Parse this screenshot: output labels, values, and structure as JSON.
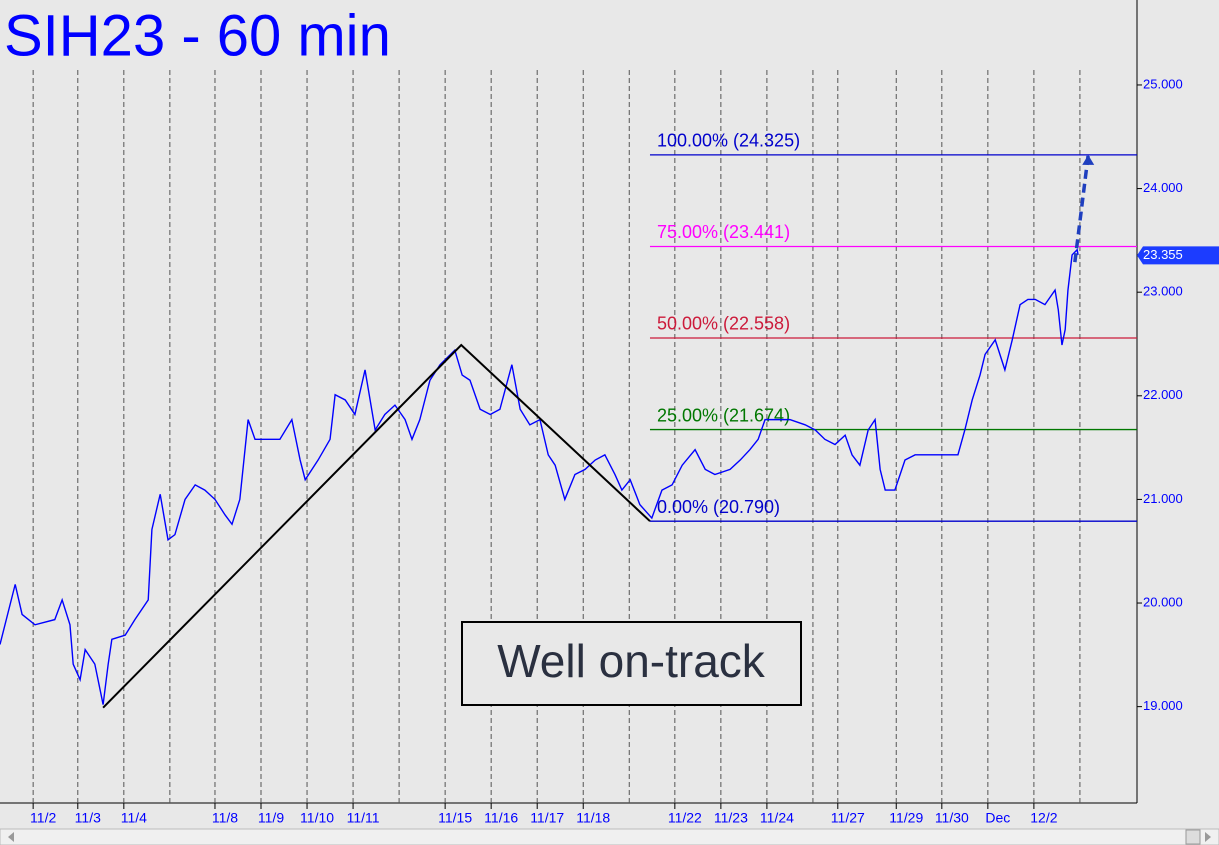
{
  "chart_data": {
    "type": "line",
    "title": "SIH23 - 60 min",
    "xlim": [
      0,
      24.7
    ],
    "ylim": [
      18.07,
      25.82
    ],
    "yticks": [
      {
        "value": 19,
        "label": "19.000"
      },
      {
        "value": 20,
        "label": "20.000"
      },
      {
        "value": 21,
        "label": "21.000"
      },
      {
        "value": 22,
        "label": "22.000"
      },
      {
        "value": 23,
        "label": "23.000"
      },
      {
        "value": 24,
        "label": "24.000"
      },
      {
        "value": 25,
        "label": "25.000"
      }
    ],
    "xticks": [
      {
        "value": 0.72,
        "label": "11/2"
      },
      {
        "value": 1.69,
        "label": "11/3"
      },
      {
        "value": 2.69,
        "label": "11/4"
      },
      {
        "value": 4.67,
        "label": "11/8"
      },
      {
        "value": 5.67,
        "label": "11/9"
      },
      {
        "value": 6.67,
        "label": "11/10"
      },
      {
        "value": 7.67,
        "label": "11/11"
      },
      {
        "value": 9.67,
        "label": "11/15"
      },
      {
        "value": 10.67,
        "label": "11/16"
      },
      {
        "value": 11.67,
        "label": "11/17"
      },
      {
        "value": 12.67,
        "label": "11/18"
      },
      {
        "value": 14.66,
        "label": "11/22"
      },
      {
        "value": 15.66,
        "label": "11/23"
      },
      {
        "value": 16.66,
        "label": "11/24"
      },
      {
        "value": 18.2,
        "label": "11/27"
      },
      {
        "value": 19.47,
        "label": "11/29"
      },
      {
        "value": 20.46,
        "label": "11/30"
      },
      {
        "value": 21.46,
        "label": "Dec"
      },
      {
        "value": 22.46,
        "label": "12/2"
      }
    ],
    "xgrid": [
      3.69,
      8.67,
      13.67,
      17.66,
      23.46
    ],
    "series": [
      {
        "color": "#0000ff",
        "x": [
          0,
          0.33,
          0.48,
          0.76,
          1.19,
          1.35,
          1.52,
          1.59,
          1.74,
          1.85,
          2.06,
          2.24,
          2.35,
          2.43,
          2.72,
          2.93,
          3.22,
          3.3,
          3.48,
          3.65,
          3.8,
          4.02,
          4.24,
          4.45,
          4.67,
          4.89,
          5.04,
          5.21,
          5.39,
          5.54,
          5.76,
          6.08,
          6.34,
          6.52,
          6.63,
          6.91,
          7.17,
          7.28,
          7.5,
          7.71,
          7.93,
          8.15,
          8.36,
          8.58,
          8.8,
          8.95,
          9.12,
          9.34,
          9.56,
          9.88,
          10.04,
          10.21,
          10.43,
          10.65,
          10.86,
          11.12,
          11.3,
          11.51,
          11.73,
          11.91,
          12.06,
          12.27,
          12.49,
          12.71,
          12.93,
          13.14,
          13.36,
          13.51,
          13.69,
          13.9,
          14.16,
          14.38,
          14.6,
          14.82,
          15.1,
          15.32,
          15.53,
          15.86,
          16.08,
          16.29,
          16.47,
          16.62,
          16.84,
          17.16,
          17.49,
          17.71,
          17.92,
          18.14,
          18.36,
          18.51,
          18.68,
          18.86,
          19.01,
          19.12,
          19.23,
          19.44,
          19.66,
          19.88,
          20.2,
          20.53,
          20.81,
          20.96,
          21.12,
          21.29,
          21.4,
          21.62,
          21.83,
          21.99,
          22.16,
          22.33,
          22.49,
          22.7,
          22.92,
          22.99,
          23.07,
          23.14,
          23.2,
          23.29,
          23.4,
          23.42
        ],
        "values": [
          19.6,
          20.18,
          19.89,
          19.79,
          19.84,
          20.03,
          19.79,
          19.41,
          19.26,
          19.55,
          19.41,
          19.02,
          19.41,
          19.65,
          19.69,
          19.84,
          20.03,
          20.71,
          21.05,
          20.61,
          20.66,
          21.0,
          21.14,
          21.09,
          21.0,
          20.85,
          20.76,
          21.0,
          21.77,
          21.58,
          21.58,
          21.58,
          21.77,
          21.38,
          21.19,
          21.38,
          21.58,
          22.01,
          21.96,
          21.82,
          22.25,
          21.67,
          21.82,
          21.91,
          21.77,
          21.58,
          21.77,
          22.15,
          22.3,
          22.44,
          22.2,
          22.15,
          21.87,
          21.82,
          21.87,
          22.3,
          21.87,
          21.72,
          21.77,
          21.43,
          21.33,
          21.0,
          21.24,
          21.29,
          21.38,
          21.43,
          21.24,
          21.09,
          21.19,
          20.95,
          20.82,
          21.09,
          21.14,
          21.33,
          21.48,
          21.29,
          21.24,
          21.29,
          21.38,
          21.48,
          21.58,
          21.77,
          21.77,
          21.77,
          21.72,
          21.67,
          21.58,
          21.53,
          21.62,
          21.43,
          21.33,
          21.67,
          21.77,
          21.29,
          21.09,
          21.09,
          21.38,
          21.43,
          21.43,
          21.43,
          21.43,
          21.67,
          21.96,
          22.2,
          22.4,
          22.54,
          22.25,
          22.54,
          22.88,
          22.93,
          22.93,
          22.88,
          23.02,
          22.83,
          22.49,
          22.64,
          23.02,
          23.36,
          23.41,
          23.36
        ]
      }
    ],
    "last_price": 23.355,
    "levels": [
      {
        "label": "100.00% (24.325)",
        "value": 24.325,
        "color": "#0000cc"
      },
      {
        "label": "75.00% (23.441)",
        "value": 23.441,
        "color": "#ff00ff"
      },
      {
        "label": "50.00% (22.558)",
        "value": 22.558,
        "color": "#cc1a3a"
      },
      {
        "label": "25.00% (21.674)",
        "value": 21.674,
        "color": "#007700"
      },
      {
        "label": "0.00% (20.790)",
        "value": 20.79,
        "color": "#0000cc"
      }
    ],
    "levels_start": 14.12,
    "pattern": {
      "x": [
        2.24,
        10.02,
        14.12
      ],
      "values": [
        18.99,
        22.49,
        20.79
      ],
      "color": "#000000"
    },
    "projection": {
      "x": [
        23.35,
        23.64
      ],
      "values": [
        23.29,
        24.325
      ],
      "color": "#1f3fbf"
    },
    "annotation": "Well on-track"
  }
}
